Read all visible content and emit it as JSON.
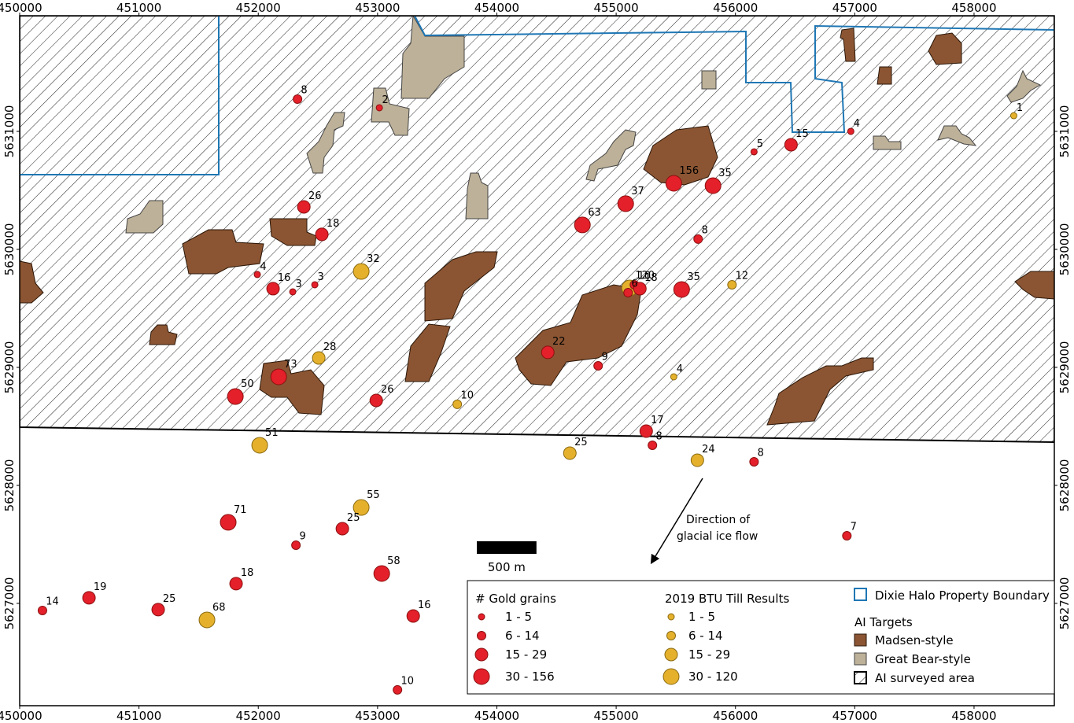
{
  "map": {
    "xlim": [
      450000,
      458673
    ],
    "ylim": [
      5626133,
      5631980
    ],
    "xticks": [
      450000,
      451000,
      452000,
      453000,
      454000,
      455000,
      456000,
      457000,
      458000
    ],
    "yticks": [
      5627000,
      5628000,
      5629000,
      5630000,
      5631000
    ],
    "gold_grains": {
      "title": "# Gold grains",
      "color": "#e4202a",
      "classes": [
        {
          "label": "1 - 5",
          "max": 5
        },
        {
          "label": "6 - 14",
          "max": 14
        },
        {
          "label": "15 - 29",
          "max": 29
        },
        {
          "label": "30 - 156",
          "max": 156
        }
      ],
      "points": [
        {
          "x": 452329,
          "y": 5631273,
          "value": 8
        },
        {
          "x": 453015,
          "y": 5631200,
          "value": 2
        },
        {
          "x": 452382,
          "y": 5630360,
          "value": 26
        },
        {
          "x": 452533,
          "y": 5630127,
          "value": 18
        },
        {
          "x": 451992,
          "y": 5629787,
          "value": 4
        },
        {
          "x": 452124,
          "y": 5629667,
          "value": 16
        },
        {
          "x": 452289,
          "y": 5629640,
          "value": 3
        },
        {
          "x": 452474,
          "y": 5629700,
          "value": 3
        },
        {
          "x": 452171,
          "y": 5628920,
          "value": 73
        },
        {
          "x": 451808,
          "y": 5628753,
          "value": 50
        },
        {
          "x": 452989,
          "y": 5628720,
          "value": 26
        },
        {
          "x": 454717,
          "y": 5630207,
          "value": 63
        },
        {
          "x": 455080,
          "y": 5630387,
          "value": 37
        },
        {
          "x": 455483,
          "y": 5630560,
          "value": 156
        },
        {
          "x": 455812,
          "y": 5630540,
          "value": 35
        },
        {
          "x": 456156,
          "y": 5630827,
          "value": 5
        },
        {
          "x": 456466,
          "y": 5630887,
          "value": 15
        },
        {
          "x": 456967,
          "y": 5631000,
          "value": 4
        },
        {
          "x": 455687,
          "y": 5630087,
          "value": 8
        },
        {
          "x": 455153,
          "y": 5629700,
          "value": 10
        },
        {
          "x": 455199,
          "y": 5629667,
          "value": 18
        },
        {
          "x": 455100,
          "y": 5629633,
          "value": 6
        },
        {
          "x": 455549,
          "y": 5629660,
          "value": 35
        },
        {
          "x": 454427,
          "y": 5629127,
          "value": 22
        },
        {
          "x": 454849,
          "y": 5629013,
          "value": 9
        },
        {
          "x": 455252,
          "y": 5628460,
          "value": 17
        },
        {
          "x": 455304,
          "y": 5628340,
          "value": 8
        },
        {
          "x": 456156,
          "y": 5628200,
          "value": 8
        },
        {
          "x": 456934,
          "y": 5627573,
          "value": 7
        },
        {
          "x": 451748,
          "y": 5627687,
          "value": 71
        },
        {
          "x": 452316,
          "y": 5627493,
          "value": 9
        },
        {
          "x": 452705,
          "y": 5627633,
          "value": 25
        },
        {
          "x": 453035,
          "y": 5627253,
          "value": 58
        },
        {
          "x": 451814,
          "y": 5627167,
          "value": 18
        },
        {
          "x": 453299,
          "y": 5626893,
          "value": 16
        },
        {
          "x": 453167,
          "y": 5626267,
          "value": 10
        },
        {
          "x": 450191,
          "y": 5626940,
          "value": 14
        },
        {
          "x": 450581,
          "y": 5627047,
          "value": 19
        },
        {
          "x": 451161,
          "y": 5626947,
          "value": 25
        }
      ]
    },
    "btu": {
      "title": "2019 BTU Till Results",
      "color": "#e5b12d",
      "classes": [
        {
          "label": "1 - 5",
          "max": 5
        },
        {
          "label": "6 - 14",
          "max": 14
        },
        {
          "label": "15 - 29",
          "max": 29
        },
        {
          "label": "30 - 120",
          "max": 120
        }
      ],
      "points": [
        {
          "x": 458333,
          "y": 5631133,
          "value": 1
        },
        {
          "x": 452863,
          "y": 5629813,
          "value": 32
        },
        {
          "x": 455971,
          "y": 5629700,
          "value": 12
        },
        {
          "x": 455113,
          "y": 5629673,
          "value": 120
        },
        {
          "x": 452507,
          "y": 5629080,
          "value": 28
        },
        {
          "x": 455483,
          "y": 5628920,
          "value": 4
        },
        {
          "x": 453668,
          "y": 5628687,
          "value": 10
        },
        {
          "x": 452012,
          "y": 5628340,
          "value": 51
        },
        {
          "x": 454612,
          "y": 5628273,
          "value": 25
        },
        {
          "x": 455681,
          "y": 5628213,
          "value": 24
        },
        {
          "x": 452863,
          "y": 5627813,
          "value": 55
        },
        {
          "x": 451570,
          "y": 5626860,
          "value": 68
        }
      ]
    },
    "ice_flow": [
      "Direction of",
      "glacial ice flow"
    ],
    "scale_bar": {
      "label": "500 m",
      "length": 500
    },
    "legend": {
      "boundary": "Dixie Halo Property Boundary",
      "ai_targets": "AI Targets",
      "madsen": "Madsen-style",
      "great_bear": "Great Bear-style",
      "surveyed": "AI surveyed area"
    }
  }
}
